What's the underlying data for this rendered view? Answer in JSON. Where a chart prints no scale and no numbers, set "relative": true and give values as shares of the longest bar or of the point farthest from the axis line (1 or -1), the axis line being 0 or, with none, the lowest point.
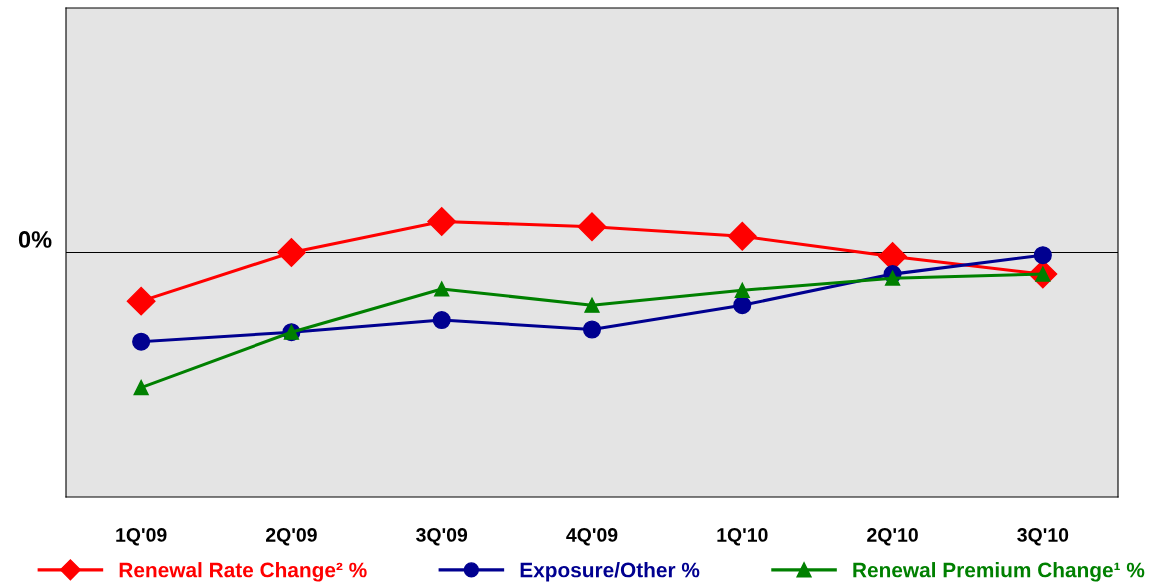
{
  "chart_data": {
    "type": "line",
    "relative": true,
    "categories": [
      "1Q'09",
      "2Q'09",
      "3Q'09",
      "4Q'09",
      "1Q'10",
      "2Q'10",
      "3Q'10"
    ],
    "series": [
      {
        "name": "Renewal Rate Change² %",
        "color": "#ff0000",
        "marker": "diamond",
        "values": [
          -0.36,
          0,
          0.23,
          0.19,
          0.12,
          -0.03,
          -0.16
        ]
      },
      {
        "name": "Exposure/Other %",
        "color": "#000090",
        "marker": "circle",
        "values": [
          -0.66,
          -0.59,
          -0.5,
          -0.57,
          -0.39,
          -0.16,
          -0.02
        ]
      },
      {
        "name": "Renewal Premium Change¹ %",
        "color": "#008000",
        "marker": "triangle",
        "values": [
          -1,
          -0.59,
          -0.27,
          -0.39,
          -0.28,
          -0.19,
          -0.16
        ]
      }
    ],
    "ref_lines": [
      {
        "axis": "y",
        "value": 0,
        "label": "0%",
        "color": "#000000"
      }
    ],
    "legend": "bottom",
    "grid": false
  }
}
